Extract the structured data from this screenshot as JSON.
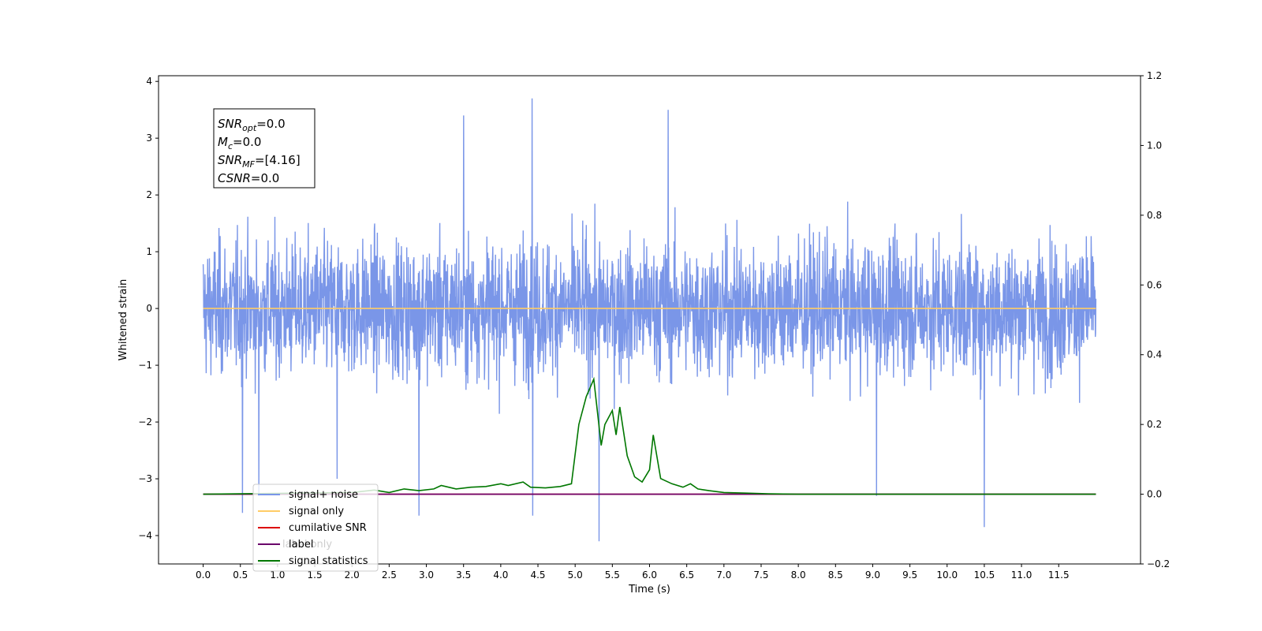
{
  "chart_data": {
    "type": "line",
    "xlabel": "Time (s)",
    "ylabel": "Whitened strain",
    "xlim": [
      -0.6,
      12.6
    ],
    "ylim": [
      -4.5,
      4.1
    ],
    "y2lim": [
      -0.2,
      1.2
    ],
    "x_ticks": [
      0.0,
      0.5,
      1.0,
      1.5,
      2.0,
      2.5,
      3.0,
      3.5,
      4.0,
      4.5,
      5.0,
      5.5,
      6.0,
      6.5,
      7.0,
      7.5,
      8.0,
      8.5,
      9.0,
      9.5,
      10.0,
      10.5,
      11.0,
      11.5
    ],
    "x_tick_labels": [
      "0.0",
      "0.5",
      "1.0",
      "1.5",
      "2.0",
      "2.5",
      "3.0",
      "3.5",
      "4.0",
      "4.5",
      "5.0",
      "5.5",
      "6.0",
      "6.5",
      "7.0",
      "7.5",
      "8.0",
      "8.5",
      "9.0",
      "9.5",
      "10.0",
      "10.5",
      "11.0",
      "11.5"
    ],
    "y_ticks": [
      4,
      3,
      2,
      1,
      0,
      -1,
      -2,
      -3,
      -4
    ],
    "y_tick_labels": [
      "4",
      "3",
      "2",
      "1",
      "0",
      "−1",
      "−2",
      "−3",
      "−4"
    ],
    "y2_ticks": [
      1.2,
      1.0,
      0.8,
      0.6,
      0.4,
      0.2,
      0.0,
      -0.2
    ],
    "y2_tick_labels": [
      "1.2",
      "1.0",
      "0.8",
      "0.6",
      "0.4",
      "0.2",
      "0.0",
      "−0.2"
    ],
    "grid": false,
    "legend_position": "lower-left",
    "noise": {
      "x_range": [
        0.0,
        12.0
      ],
      "typical_amplitude": 1.6,
      "spikes": [
        {
          "x": 0.53,
          "y": -3.6
        },
        {
          "x": 0.75,
          "y": -3.3
        },
        {
          "x": 1.8,
          "y": -3.0
        },
        {
          "x": 2.9,
          "y": -3.65
        },
        {
          "x": 3.5,
          "y": 3.4
        },
        {
          "x": 4.42,
          "y": 3.7
        },
        {
          "x": 4.43,
          "y": -3.65
        },
        {
          "x": 5.32,
          "y": -4.1
        },
        {
          "x": 6.25,
          "y": 3.5
        },
        {
          "x": 9.05,
          "y": -3.3
        },
        {
          "x": 10.5,
          "y": -3.85
        }
      ]
    },
    "series": [
      {
        "name": "signal+ noise",
        "color": "#7a96e8",
        "axis": "left",
        "description_only": true
      },
      {
        "name": "signal only",
        "color": "#ffcc66",
        "axis": "left",
        "x": [
          0.0,
          12.0
        ],
        "y": [
          0.0,
          0.0
        ]
      },
      {
        "name": "cumilative SNR",
        "color": "#dd0000",
        "axis": "right",
        "x": [
          0.0,
          12.0
        ],
        "y": [
          0.0,
          0.0
        ]
      },
      {
        "name": "label",
        "color": "#6a006a",
        "axis": "right",
        "x": [
          0.0,
          12.0
        ],
        "y": [
          0.0,
          0.0
        ]
      },
      {
        "name": "signal statistics",
        "color": "#007700",
        "axis": "right",
        "x": [
          0.0,
          2.0,
          2.3,
          2.5,
          2.7,
          2.9,
          3.1,
          3.2,
          3.3,
          3.4,
          3.6,
          3.8,
          4.0,
          4.1,
          4.3,
          4.4,
          4.6,
          4.8,
          4.95,
          5.05,
          5.15,
          5.25,
          5.35,
          5.4,
          5.5,
          5.55,
          5.6,
          5.7,
          5.8,
          5.9,
          6.0,
          6.05,
          6.15,
          6.3,
          6.45,
          6.55,
          6.65,
          6.8,
          7.0,
          7.3,
          7.6,
          8.0,
          12.0
        ],
        "y": [
          0.0,
          0.005,
          0.012,
          0.005,
          0.015,
          0.01,
          0.015,
          0.025,
          0.02,
          0.015,
          0.02,
          0.022,
          0.03,
          0.025,
          0.035,
          0.02,
          0.018,
          0.022,
          0.03,
          0.2,
          0.28,
          0.33,
          0.14,
          0.2,
          0.24,
          0.17,
          0.25,
          0.11,
          0.05,
          0.035,
          0.07,
          0.17,
          0.045,
          0.03,
          0.02,
          0.03,
          0.015,
          0.01,
          0.005,
          0.003,
          0.001,
          0.0,
          0.0
        ]
      }
    ],
    "annotation": {
      "lines": [
        {
          "base": "SNR",
          "sub": "opt",
          "value": "=0.0"
        },
        {
          "base": "M",
          "sub": "c",
          "value": "=0.0"
        },
        {
          "base": "SNR",
          "sub": "MF",
          "value": "=[4.16]"
        },
        {
          "base": "CSNR",
          "sub": "",
          "value": "=0.0"
        }
      ]
    },
    "legend_obscured_text": "label only"
  }
}
